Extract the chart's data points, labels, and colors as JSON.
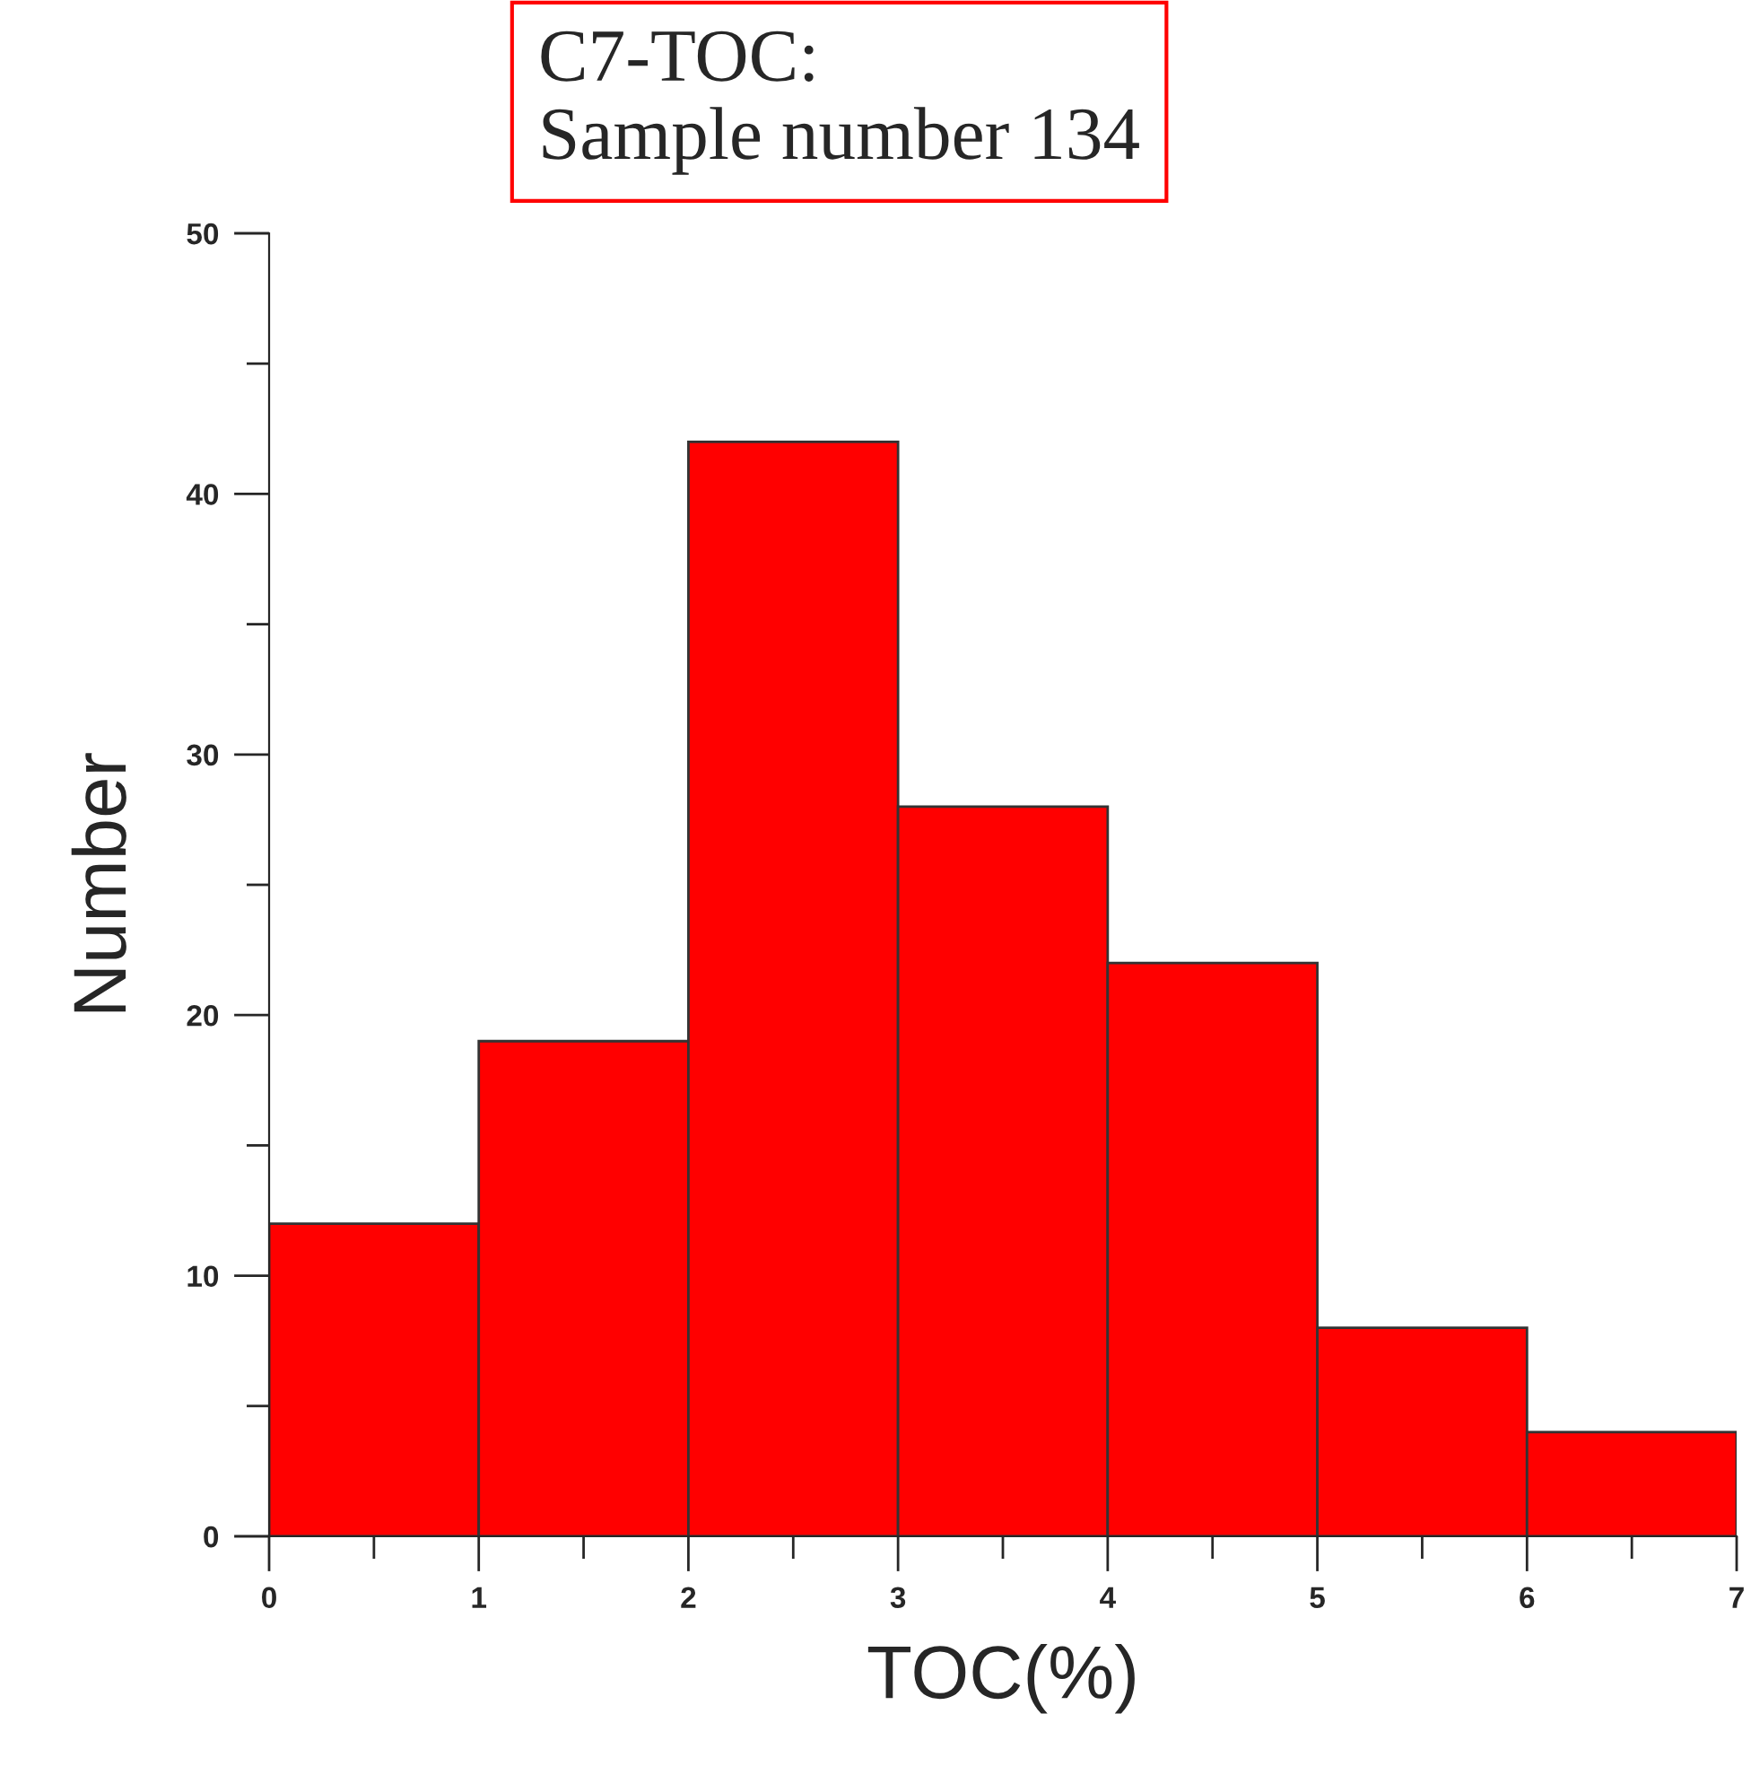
{
  "chart_data": {
    "type": "histogram",
    "xlabel": "TOC(%)",
    "ylabel": "Number",
    "annotations": [
      "C7-TOC:\nSample number 134"
    ],
    "bins": [
      0,
      1,
      2,
      3,
      4,
      5,
      6,
      7
    ],
    "values": [
      12,
      19,
      42,
      28,
      22,
      8,
      4
    ],
    "color": "#ff0000",
    "xlim": [
      0,
      7
    ],
    "xticks": [
      0,
      {
        "value": 0.5,
        "label": null
      },
      1,
      {
        "value": 1.5,
        "label": null
      },
      2,
      {
        "value": 2.5,
        "label": null
      },
      3,
      {
        "value": 3.5,
        "label": null
      },
      4,
      {
        "value": 4.5,
        "label": null
      },
      5,
      {
        "value": 5.5,
        "label": null
      },
      6,
      {
        "value": 6.5,
        "label": null
      },
      7
    ],
    "ylim": [
      0,
      50
    ],
    "yticks": [
      0,
      {
        "value": 5,
        "label": null
      },
      10,
      {
        "value": 15,
        "label": null
      },
      20,
      {
        "value": 25,
        "label": null
      },
      30,
      {
        "value": 35,
        "label": null
      },
      40,
      {
        "value": 45,
        "label": null
      },
      50
    ],
    "grid": false
  }
}
